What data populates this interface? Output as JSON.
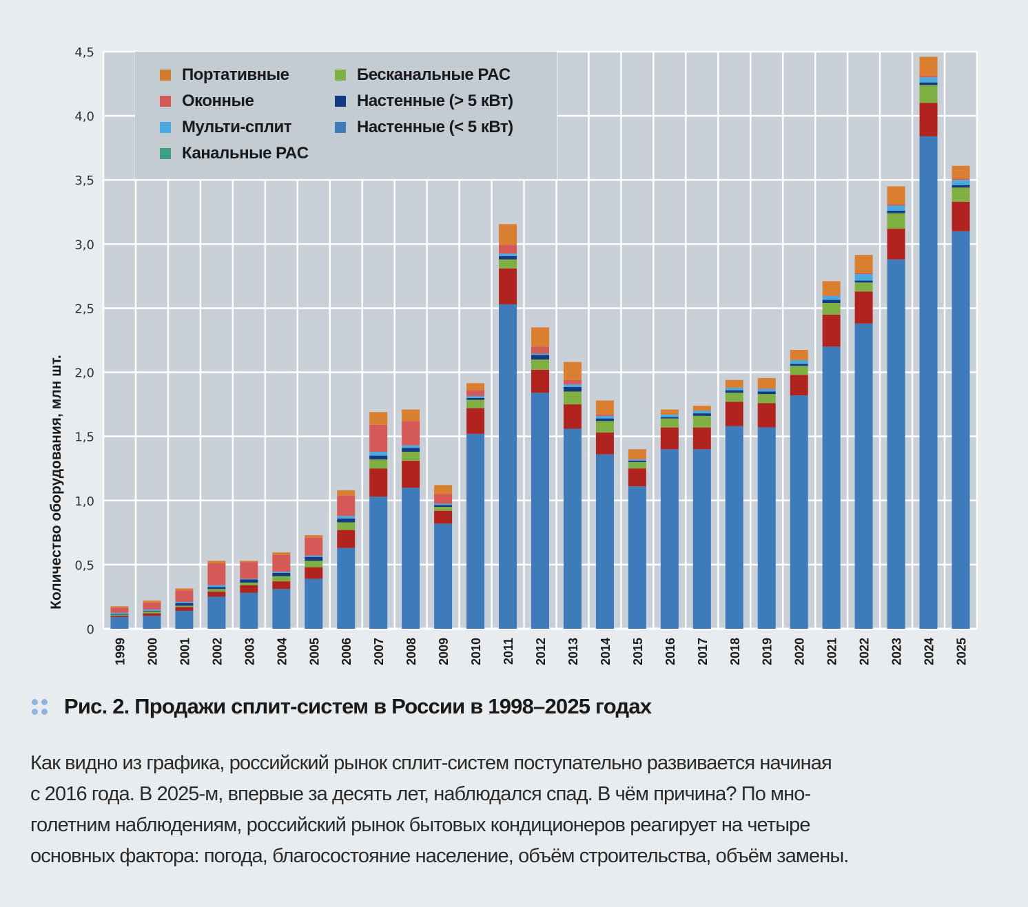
{
  "chart_data": {
    "type": "bar",
    "stacked": true,
    "title": "Рис. 2. Продажи сплит-систем в России в 1998–2025 годах",
    "xlabel": "",
    "ylabel": "Количество оборудования, млн шт.",
    "ylim": [
      0,
      4.5
    ],
    "yticks": [
      "0",
      "0,5",
      "1,0",
      "1,5",
      "2,0",
      "2,5",
      "3,0",
      "3,5",
      "4,0",
      "4,5"
    ],
    "ytick_values": [
      0,
      0.5,
      1.0,
      1.5,
      2.0,
      2.5,
      3.0,
      3.5,
      4.0,
      4.5
    ],
    "grid": true,
    "legend_position": "top-left",
    "categories": [
      "1999",
      "2000",
      "2001",
      "2002",
      "2003",
      "2004",
      "2005",
      "2006",
      "2007",
      "2008",
      "2009",
      "2010",
      "2011",
      "2012",
      "2013",
      "2014",
      "2015",
      "2016",
      "2017",
      "2018",
      "2019",
      "2020",
      "2021",
      "2022",
      "2023",
      "2024",
      "2025"
    ],
    "series": [
      {
        "name": "Настенные (< 5 кВт)",
        "color": "#3d7bbb",
        "in_legend": true,
        "values": [
          0.09,
          0.1,
          0.14,
          0.25,
          0.28,
          0.31,
          0.39,
          0.63,
          1.03,
          1.1,
          0.82,
          1.52,
          2.53,
          1.84,
          1.56,
          1.36,
          1.11,
          1.4,
          1.4,
          1.58,
          1.57,
          1.82,
          2.2,
          2.38,
          2.88,
          3.84,
          3.1
        ]
      },
      {
        "name": "",
        "color": "#b0231f",
        "in_legend": false,
        "values": [
          0.01,
          0.02,
          0.03,
          0.04,
          0.06,
          0.06,
          0.09,
          0.14,
          0.22,
          0.21,
          0.1,
          0.2,
          0.28,
          0.18,
          0.19,
          0.17,
          0.14,
          0.17,
          0.17,
          0.19,
          0.19,
          0.16,
          0.25,
          0.25,
          0.24,
          0.26,
          0.23
        ]
      },
      {
        "name": "Канальные PAC",
        "color": "#3fa07f",
        "in_legend": true,
        "values": [
          0.005,
          0.005,
          0.0,
          0.0,
          0.0,
          0.0,
          0.0,
          0.0,
          0.0,
          0.0,
          0.0,
          0.0,
          0.0,
          0.0,
          0.0,
          0.0,
          0.0,
          0.0,
          0.0,
          0.0,
          0.0,
          0.0,
          0.0,
          0.0,
          0.0,
          0.0,
          0.0
        ]
      },
      {
        "name": "Бесканальные PAC",
        "color": "#80b041",
        "in_legend": true,
        "values": [
          0.005,
          0.01,
          0.01,
          0.02,
          0.02,
          0.04,
          0.05,
          0.06,
          0.07,
          0.07,
          0.03,
          0.065,
          0.07,
          0.08,
          0.1,
          0.09,
          0.05,
          0.07,
          0.09,
          0.07,
          0.07,
          0.07,
          0.09,
          0.07,
          0.12,
          0.14,
          0.11
        ]
      },
      {
        "name": "Настенные (> 5 кВт)",
        "color": "#143a80",
        "in_legend": true,
        "values": [
          0.005,
          0.005,
          0.02,
          0.015,
          0.025,
          0.025,
          0.03,
          0.03,
          0.03,
          0.03,
          0.015,
          0.015,
          0.025,
          0.035,
          0.035,
          0.02,
          0.01,
          0.01,
          0.02,
          0.02,
          0.02,
          0.015,
          0.025,
          0.015,
          0.02,
          0.02,
          0.02
        ]
      },
      {
        "name": "Мульти-сплит",
        "color": "#4aa9de",
        "in_legend": true,
        "values": [
          0.01,
          0.01,
          0.01,
          0.015,
          0.005,
          0.01,
          0.01,
          0.02,
          0.03,
          0.02,
          0.01,
          0.015,
          0.02,
          0.01,
          0.02,
          0.02,
          0.01,
          0.02,
          0.02,
          0.02,
          0.02,
          0.03,
          0.03,
          0.05,
          0.04,
          0.04,
          0.04
        ]
      },
      {
        "name": "Оконные",
        "color": "#d55957",
        "in_legend": true,
        "values": [
          0.04,
          0.055,
          0.09,
          0.17,
          0.13,
          0.13,
          0.14,
          0.16,
          0.21,
          0.19,
          0.075,
          0.045,
          0.07,
          0.055,
          0.035,
          0.01,
          0.005,
          0.0,
          0.0,
          0.0,
          0.005,
          0.0,
          0.005,
          0.01,
          0.01,
          0.01,
          0.01
        ]
      },
      {
        "name": "Портативные",
        "color": "#d97f2f",
        "in_legend": true,
        "values": [
          0.01,
          0.015,
          0.015,
          0.02,
          0.01,
          0.02,
          0.02,
          0.04,
          0.1,
          0.09,
          0.07,
          0.055,
          0.16,
          0.15,
          0.14,
          0.11,
          0.075,
          0.04,
          0.04,
          0.06,
          0.08,
          0.08,
          0.11,
          0.14,
          0.14,
          0.15,
          0.1
        ]
      }
    ],
    "legend": [
      {
        "label": "Портативные",
        "color": "#d27a2c"
      },
      {
        "label": "Оконные",
        "color": "#d55957"
      },
      {
        "label": "Мульти-сплит",
        "color": "#4aa9de"
      },
      {
        "label": "Канальные PAC",
        "color": "#3fa07f"
      },
      {
        "label": "Бесканальные PAC",
        "color": "#80b041"
      },
      {
        "label": "Настенные (> 5 кВт)",
        "color": "#143a80"
      },
      {
        "label": "Настенные (< 5 кВт)",
        "color": "#3d7bbb"
      }
    ]
  },
  "caption": {
    "bullet_icon": "four-dots-icon",
    "text": "Рис. 2. Продажи сплит-систем в России в 1998–2025 годах"
  },
  "body_text": {
    "lines": [
      "Как видно из графика, российский рынок сплит-систем поступательно развивается начиная",
      "с 2016 года. В 2025-м, впервые за десять лет, наблюдался спад. В чём причина? По мно-",
      "голетним наблюдениям, российский рынок бытовых кондиционеров реагирует на четыре",
      "основных фактора: погода, благосостояние население, объём строительства, объём замены."
    ]
  }
}
